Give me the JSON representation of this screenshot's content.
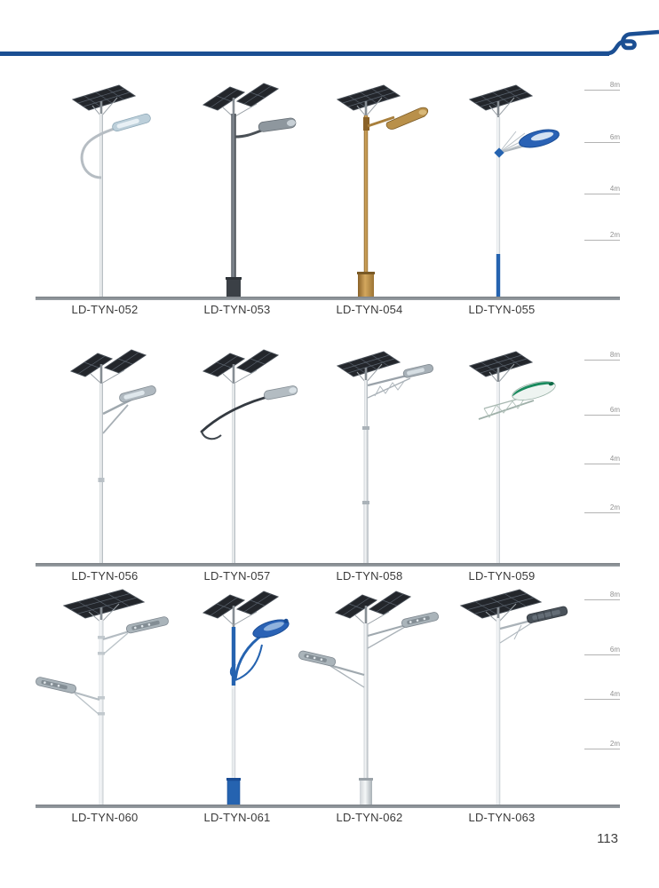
{
  "page": {
    "number": "113"
  },
  "header": {
    "line_color": "#1b4f93",
    "logo": "s-curve-mark"
  },
  "scale": {
    "labels": [
      "8m",
      "6m",
      "4m",
      "2m"
    ]
  },
  "palette": {
    "header_blue": "#1b4f93",
    "ground_gray": "#8d9297",
    "panel_dark": "#23262b",
    "panel_frame": "#454c54",
    "panel_grid": "#5a636e",
    "silver": [
      "#cfd4d8",
      "#f4f6f7",
      "#a8b0b6"
    ],
    "white": [
      "#dfe3e6",
      "#f7f9fa",
      "#c5cbd0"
    ],
    "dark": [
      "#565c63",
      "#868d95",
      "#3a3f45"
    ],
    "gold": [
      "#8a6228",
      "#d3a75e",
      "#9c7434"
    ],
    "blue": "#2563b0",
    "blue_dark": "#1a4d95",
    "lamp_blue": "#2a62b5",
    "lamp_green": "#1a8a5e"
  },
  "rows": [
    {
      "products": [
        {
          "model": "LD-TYN-052",
          "variant": "curl",
          "pole": "silver"
        },
        {
          "model": "LD-TYN-053",
          "variant": "straight",
          "pole": "dark"
        },
        {
          "model": "LD-TYN-054",
          "variant": "goldtop",
          "pole": "gold"
        },
        {
          "model": "LD-TYN-055",
          "variant": "fan",
          "pole": "white"
        }
      ]
    },
    {
      "products": [
        {
          "model": "LD-TYN-056",
          "variant": "brace",
          "pole": "silver"
        },
        {
          "model": "LD-TYN-057",
          "variant": "swoosh",
          "pole": "silver"
        },
        {
          "model": "LD-TYN-058",
          "variant": "truss",
          "pole": "silver"
        },
        {
          "model": "LD-TYN-059",
          "variant": "leaf",
          "pole": "white"
        }
      ]
    },
    {
      "products": [
        {
          "model": "LD-TYN-060",
          "variant": "double",
          "pole": "white"
        },
        {
          "model": "LD-TYN-061",
          "variant": "ornate",
          "pole": "white"
        },
        {
          "model": "LD-TYN-062",
          "variant": "dtruss",
          "pole": "silver"
        },
        {
          "model": "LD-TYN-063",
          "variant": "truss2",
          "pole": "white"
        }
      ]
    }
  ]
}
